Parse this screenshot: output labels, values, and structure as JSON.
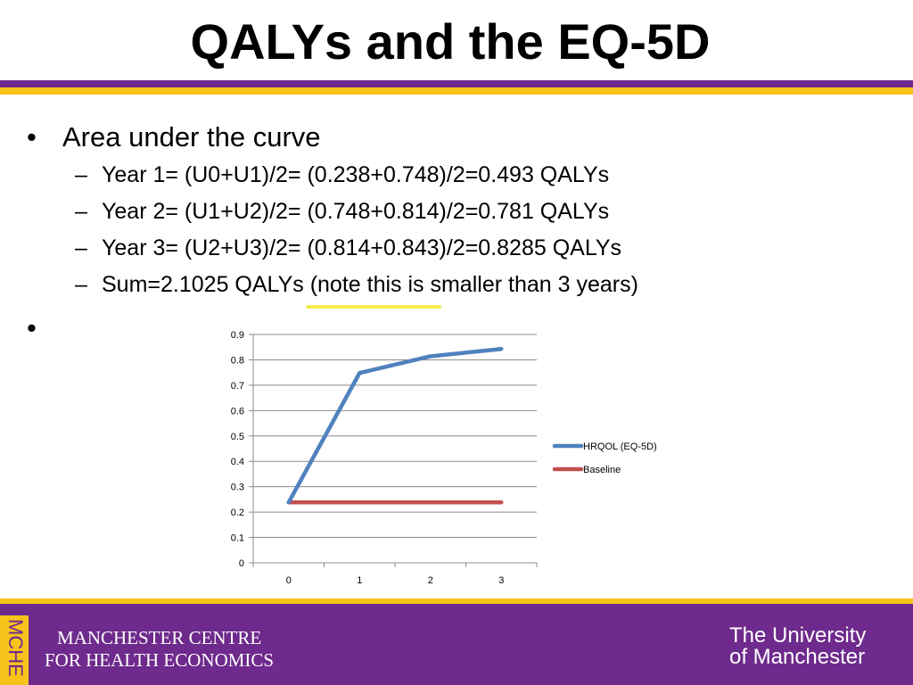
{
  "slide": {
    "title": "QALYs and the EQ-5D",
    "main_bullet": "Area under the curve",
    "bullet_symbol": "•",
    "dash_symbol": "–",
    "sub_bullets": [
      "Year 1= (U0+U1)/2= (0.238+0.748)/2=0.493 QALYs",
      "Year 2= (U1+U2)/2= (0.748+0.814)/2=0.781 QALYs",
      "Year 3= (U2+U3)/2= (0.814+0.843)/2=0.8285 QALYs",
      "Sum=2.1025 QALYs (note this is smaller than 3 years)"
    ]
  },
  "chart_data": {
    "type": "line",
    "x": [
      0,
      1,
      2,
      3
    ],
    "categories": [
      "0",
      "1",
      "2",
      "3"
    ],
    "y_ticks": [
      "0",
      "0.1",
      "0.2",
      "0.3",
      "0.4",
      "0.5",
      "0.6",
      "0.7",
      "0.8",
      "0.9"
    ],
    "ylim": [
      0,
      0.9
    ],
    "grid": true,
    "legend_position": "right",
    "title": "",
    "xlabel": "",
    "ylabel": "",
    "series": [
      {
        "name": "HRQOL (EQ-5D)",
        "values": [
          0.238,
          0.748,
          0.814,
          0.843
        ],
        "color": "#4f81bd"
      },
      {
        "name": "Baseline",
        "values": [
          0.238,
          0.238,
          0.238,
          0.238
        ],
        "color": "#c0504d"
      }
    ]
  },
  "footer": {
    "tab_text": "MCHE",
    "centre_line1": "MANCHESTER CENTRE",
    "centre_line2": "FOR HEALTH ECONOMICS",
    "university_line1": "The University",
    "university_line2": "of Manchester"
  },
  "colors": {
    "purple": "#6e2a8c",
    "gold": "#f7c21a",
    "highlight": "#f4ea3a"
  }
}
